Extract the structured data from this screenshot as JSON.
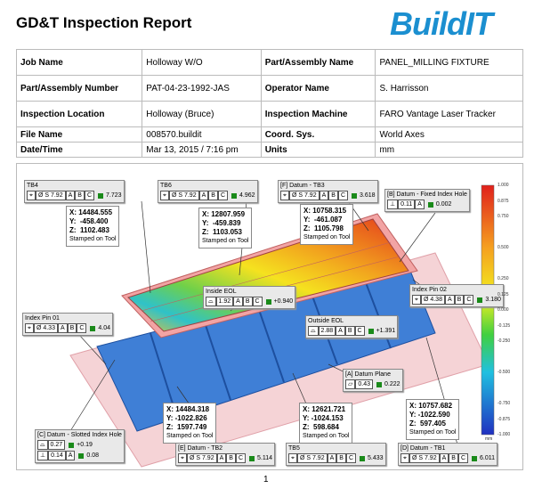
{
  "header": {
    "title": "GD&T Inspection Report",
    "logo": "BuildIT"
  },
  "table": {
    "rows": [
      [
        "Job Name",
        "Holloway W/O",
        "Part/Assembly Name",
        "PANEL_MILLING FIXTURE"
      ],
      [
        "Part/Assembly Number",
        "PAT-04-23-1992-JAS",
        "Operator Name",
        "S. Harrisson"
      ],
      [
        "Inspection Location",
        "Holloway (Bruce)",
        "Inspection Machine",
        "FARO Vantage Laser Tracker"
      ],
      [
        "File Name",
        "008570.buildit",
        "Coord. Sys.",
        "World Axes"
      ],
      [
        "Date/Time",
        "Mar 13, 2015 / 7:16 pm",
        "Units",
        "mm"
      ]
    ]
  },
  "figure": {
    "callouts": [
      {
        "title": "TB4",
        "rows": [
          {
            "cells": [
              "⌖",
              "Ø S 7.92",
              "A",
              "B",
              "C"
            ],
            "value": "7.723"
          }
        ]
      },
      {
        "title": "TB6",
        "rows": [
          {
            "cells": [
              "⌖",
              "Ø S 7.92",
              "A",
              "B",
              "C"
            ],
            "value": "4.962"
          }
        ]
      },
      {
        "title": "[F] Datum - TB3",
        "rows": [
          {
            "cells": [
              "⌖",
              "Ø S 7.92",
              "A",
              "B",
              "C"
            ],
            "value": "3.618"
          }
        ]
      },
      {
        "title": "[B] Datum - Fixed Index Hole",
        "rows": [
          {
            "cells": [
              "⊥",
              "0.11",
              "A"
            ],
            "value": "0.002"
          }
        ]
      },
      {
        "title": "Index Pin 02",
        "rows": [
          {
            "cells": [
              "⌖",
              "Ø 4.38",
              "A",
              "B",
              "C"
            ],
            "value": "3.180"
          }
        ]
      },
      {
        "title": "Inside EOL",
        "rows": [
          {
            "cells": [
              "⌓",
              "1.92",
              "A",
              "B",
              "C"
            ],
            "value": "+0.940"
          }
        ]
      },
      {
        "title": "Outside EOL",
        "rows": [
          {
            "cells": [
              "⌓",
              "2.88",
              "A",
              "B",
              "C"
            ],
            "value": "+1.391"
          }
        ]
      },
      {
        "title": "Index Pin 01",
        "rows": [
          {
            "cells": [
              "⌖",
              "Ø 4.33",
              "A",
              "B",
              "C"
            ],
            "value": "4.04"
          }
        ]
      },
      {
        "title": "[A] Datum Plane",
        "rows": [
          {
            "cells": [
              "▱",
              "0.43"
            ],
            "value": "0.222"
          }
        ]
      },
      {
        "title": "[C] Datum - Slotted Index Hole",
        "rows": [
          {
            "cells": [
              "⌓",
              "0.27"
            ],
            "value": "+0.19"
          },
          {
            "cells": [
              "⊥",
              "0.14",
              "A"
            ],
            "value": "0.08"
          }
        ]
      },
      {
        "title": "[E] Datum - TB2",
        "rows": [
          {
            "cells": [
              "⌖",
              "Ø S 7.92",
              "A",
              "B",
              "C"
            ],
            "value": "5.114"
          }
        ]
      },
      {
        "title": "TB5",
        "rows": [
          {
            "cells": [
              "⌖",
              "Ø S 7.92",
              "A",
              "B",
              "C"
            ],
            "value": "5.433"
          }
        ]
      },
      {
        "title": "[D] Datum - TB1",
        "rows": [
          {
            "cells": [
              "⌖",
              "Ø S 7.92",
              "A",
              "B",
              "C"
            ],
            "value": "6.011"
          }
        ]
      }
    ],
    "coordinates": [
      {
        "lines": [
          "X: 14484.555",
          "Y:  -458.400",
          "Z:  1102.483",
          "Stamped on Tool"
        ]
      },
      {
        "lines": [
          "X: 12807.959",
          "Y:  -459.839",
          "Z:  1103.053",
          "Stamped on Tool"
        ]
      },
      {
        "lines": [
          "X: 10758.315",
          "Y:  -461.087",
          "Z:  1105.798",
          "Stamped on Tool"
        ]
      },
      {
        "lines": [
          "X: 14484.318",
          "Y: -1022.826",
          "Z:  1597.749",
          "Stamped on Tool"
        ]
      },
      {
        "lines": [
          "X: 12621.721",
          "Y: -1024.153",
          "Z:  598.684",
          "Stamped on Tool"
        ]
      },
      {
        "lines": [
          "X: 10757.682",
          "Y: -1022.590",
          "Z:  597.405",
          "Stamped on Tool"
        ]
      }
    ],
    "scale": {
      "labels": [
        "1.000",
        "0.875",
        "0.750",
        "0.500",
        "0.250",
        "0.125",
        "0.000",
        "-0.125",
        "-0.250",
        "-0.500",
        "-0.750",
        "-0.875",
        "-1.000"
      ],
      "unit": "mm"
    }
  },
  "page_number": "1"
}
